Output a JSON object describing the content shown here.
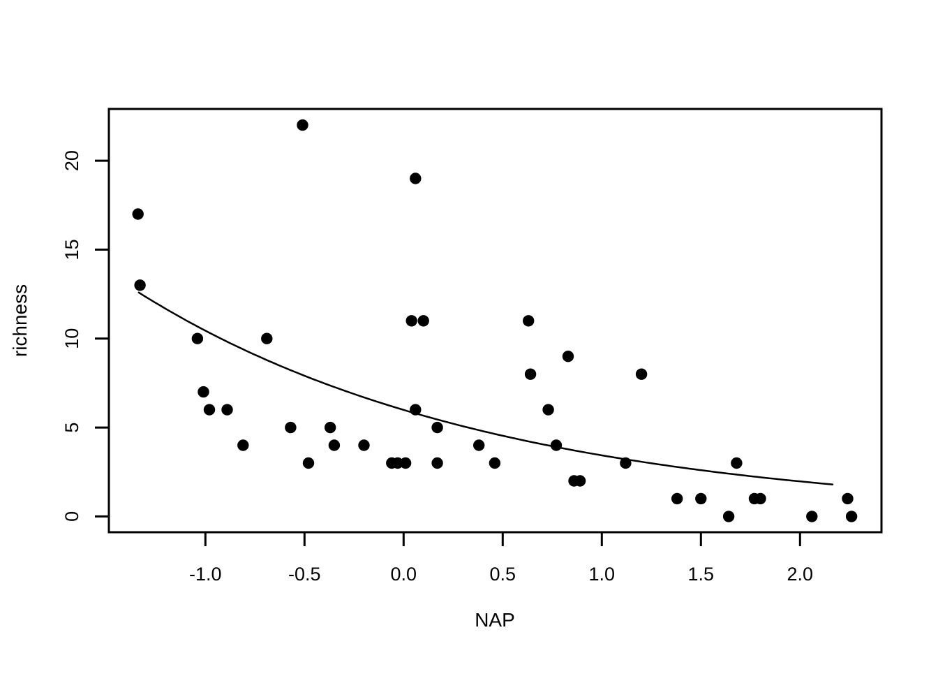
{
  "figure": {
    "background_color": "#FFFFFF",
    "foreground_color": "#000000"
  },
  "chart_data": {
    "type": "scatter",
    "title": "",
    "xlabel": "NAP",
    "ylabel": "richness",
    "xlim": [
      -1.5,
      2.4
    ],
    "ylim": [
      -0.9,
      23
    ],
    "grid": "off",
    "legend": "none",
    "x_ticks": [
      -1.0,
      -0.5,
      0.0,
      0.5,
      1.0,
      1.5,
      2.0
    ],
    "x_tick_labels": [
      "-1.0",
      "-0.5",
      "0.0",
      "0.5",
      "1.0",
      "1.5",
      "2.0"
    ],
    "y_ticks": [
      0,
      5,
      10,
      15,
      20
    ],
    "y_tick_labels": [
      "0",
      "5",
      "10",
      "15",
      "20"
    ],
    "point_style": "filled-circle",
    "point_color": "#000000",
    "line_color": "#000000",
    "points": [
      [
        -1.34,
        17
      ],
      [
        -1.33,
        13
      ],
      [
        -1.04,
        10
      ],
      [
        -1.01,
        7
      ],
      [
        -0.98,
        6
      ],
      [
        -0.89,
        6
      ],
      [
        -0.81,
        4
      ],
      [
        -0.69,
        10
      ],
      [
        -0.57,
        5
      ],
      [
        -0.51,
        22
      ],
      [
        -0.48,
        3
      ],
      [
        -0.37,
        5
      ],
      [
        -0.35,
        4
      ],
      [
        -0.2,
        4
      ],
      [
        -0.06,
        3
      ],
      [
        -0.03,
        3
      ],
      [
        0.01,
        3
      ],
      [
        0.04,
        11
      ],
      [
        0.06,
        19
      ],
      [
        0.06,
        6
      ],
      [
        0.1,
        11
      ],
      [
        0.17,
        5
      ],
      [
        0.17,
        3
      ],
      [
        0.38,
        4
      ],
      [
        0.46,
        3
      ],
      [
        0.63,
        11
      ],
      [
        0.64,
        8
      ],
      [
        0.73,
        6
      ],
      [
        0.77,
        4
      ],
      [
        0.83,
        9
      ],
      [
        0.86,
        2
      ],
      [
        0.89,
        2
      ],
      [
        1.12,
        3
      ],
      [
        1.2,
        8
      ],
      [
        1.38,
        1
      ],
      [
        1.5,
        1
      ],
      [
        1.64,
        0
      ],
      [
        1.68,
        3
      ],
      [
        1.77,
        1
      ],
      [
        1.8,
        1
      ],
      [
        2.06,
        0
      ],
      [
        2.24,
        1
      ],
      [
        2.26,
        0
      ]
    ],
    "fit_curve": {
      "description": "exponential fitted curve (Poisson GLM)",
      "equation": "richness = exp(1.79 - 0.556 * NAP)",
      "intercept": 1.79,
      "slope": -0.556,
      "x_start": -1.336,
      "x_end": 2.18
    }
  }
}
